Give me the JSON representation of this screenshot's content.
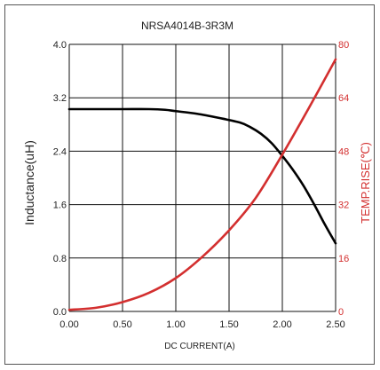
{
  "chart_data": {
    "type": "line",
    "title": "NRSA4014B-3R3M",
    "xlabel": "DC CURRENT(A)",
    "ylabel_left": "Inductance(uH)",
    "ylabel_right": "TEMP.RISE(℃)",
    "xlim": [
      0,
      2.5
    ],
    "ylim_left": [
      0,
      4.0
    ],
    "ylim_right": [
      0,
      80
    ],
    "xticks": [
      "0.00",
      "0.50",
      "1.00",
      "1.50",
      "2.00",
      "2.50"
    ],
    "yticks_left": [
      "0.0",
      "0.8",
      "1.6",
      "2.4",
      "3.2",
      "4.0"
    ],
    "yticks_right": [
      "0",
      "16",
      "32",
      "48",
      "64",
      "80"
    ],
    "grid": true,
    "series": [
      {
        "axis": "left",
        "color": "#000000",
        "x": [
          0.0,
          0.25,
          0.5,
          0.75,
          0.9,
          1.0,
          1.2,
          1.4,
          1.6,
          1.7,
          1.8,
          1.9,
          2.0,
          2.1,
          2.2,
          2.3,
          2.4,
          2.5
        ],
        "y": [
          3.03,
          3.03,
          3.03,
          3.03,
          3.02,
          3.0,
          2.96,
          2.9,
          2.83,
          2.76,
          2.66,
          2.52,
          2.33,
          2.12,
          1.88,
          1.6,
          1.3,
          1.02
        ]
      },
      {
        "axis": "right",
        "color": "#d32f2f",
        "x": [
          0.0,
          0.25,
          0.5,
          0.75,
          1.0,
          1.25,
          1.5,
          1.75,
          2.0,
          2.25,
          2.5
        ],
        "y": [
          0.5,
          1.1,
          2.8,
          5.6,
          10.0,
          16.4,
          24.3,
          34.0,
          47.0,
          61.0,
          75.5
        ]
      }
    ]
  }
}
